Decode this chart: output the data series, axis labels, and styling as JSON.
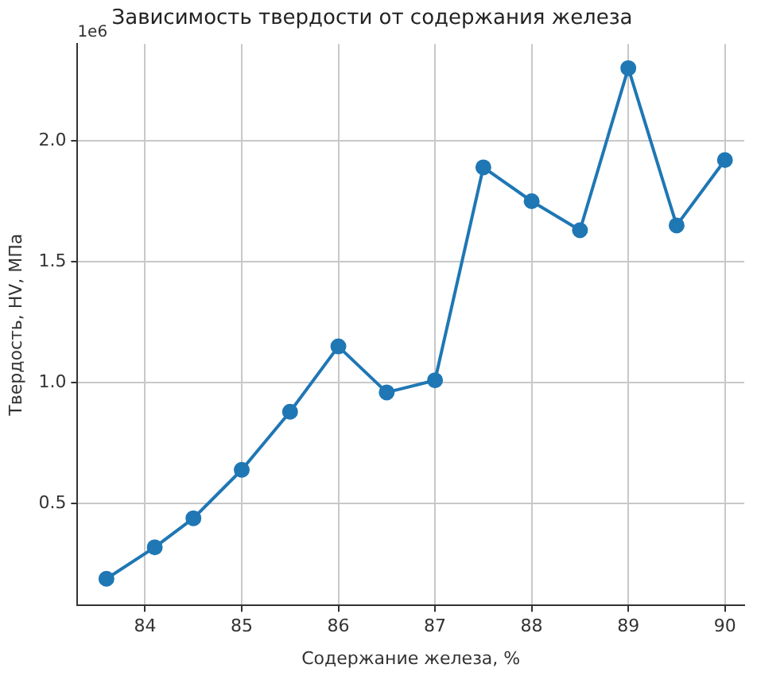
{
  "chart_data": {
    "type": "line",
    "title": "Зависимость твердости от содержания железа",
    "xlabel": "Содержание железа, %",
    "ylabel": "Твердость, HV, МПа",
    "annotations": [
      "1e6"
    ],
    "x": [
      83.6,
      84.1,
      84.5,
      85,
      85.5,
      86,
      86.5,
      87,
      87.5,
      88,
      88.5,
      89,
      89.5,
      90
    ],
    "series": [
      {
        "color": "#1f77b4",
        "values": [
          0.19,
          0.32,
          0.44,
          0.64,
          0.88,
          1.15,
          0.96,
          1.01,
          1.89,
          1.75,
          1.63,
          2.3,
          1.65,
          1.92
        ]
      }
    ],
    "xlim": [
      83.3,
      90.2
    ],
    "xticks": [
      84,
      85,
      86,
      87,
      88,
      89,
      90
    ],
    "ylim": [
      0.08,
      2.4
    ],
    "yticks": [
      0.5,
      {
        "value": 1,
        "label": "1.0"
      },
      1.5,
      {
        "value": 2,
        "label": "2.0"
      }
    ],
    "grid": true,
    "marker": "circle",
    "line_style": "solid"
  }
}
